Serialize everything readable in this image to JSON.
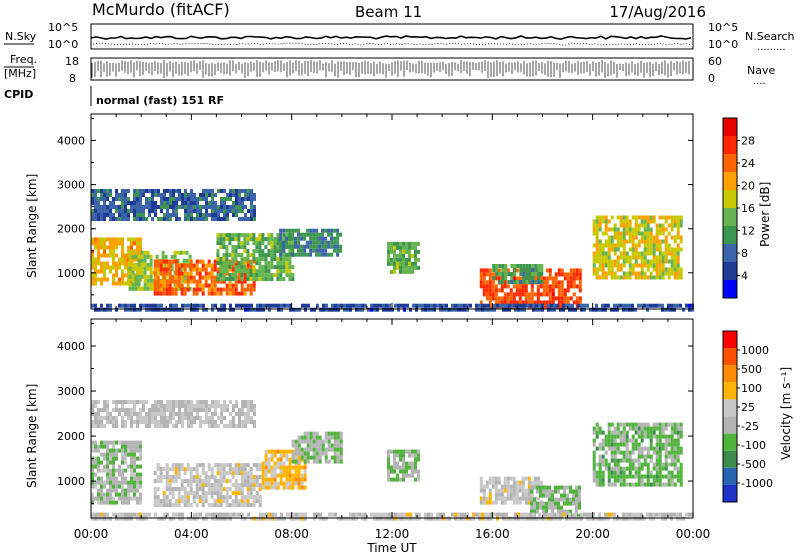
{
  "header": {
    "station": "McMurdo (fitACF)",
    "beam": "Beam 11",
    "date": "17/Aug/2016"
  },
  "top_panel": {
    "nsky_label": "N.Sky",
    "nsearch_label": "N.Search",
    "nsearch_dots": ".........",
    "left_ticks": [
      "10^5",
      "10^0"
    ],
    "right_ticks": [
      "10^5",
      "10^0"
    ],
    "freq_label": "Freq.",
    "freq_unit": "[MHz]",
    "freq_ticks": [
      "18",
      "8"
    ],
    "nave_label": "Nave",
    "nave_dots": "....",
    "nave_ticks": [
      "60",
      "0"
    ],
    "cpid_label": "CPID",
    "cpid_value": "normal (fast) 151 RF"
  },
  "colors": {
    "power_scale": [
      "#0000ff",
      "#1e3c96",
      "#3c64aa",
      "#3c9650",
      "#64b450",
      "#c8c800",
      "#ffa000",
      "#ff6400",
      "#ff2800",
      "#e60000"
    ],
    "velocity_scale": [
      "#1e32c8",
      "#2864b4",
      "#3c8c50",
      "#50b43c",
      "#b4b4b4",
      "#c8c8c8",
      "#ffb400",
      "#ff8c00",
      "#ff5000",
      "#ff0000"
    ]
  },
  "chart_data": [
    {
      "type": "heatmap",
      "title": "",
      "xlabel": "Time UT",
      "ylabel": "Slant Range [km]",
      "x_ticks": [
        "00:00",
        "04:00",
        "08:00",
        "12:00",
        "16:00",
        "20:00",
        "00:00"
      ],
      "y_ticks": [
        "1000",
        "2000",
        "3000",
        "4000"
      ],
      "ylim": [
        180,
        4600
      ],
      "xlim_hours": [
        0,
        24
      ],
      "colorbar": {
        "label": "Power [dB]",
        "ticks": [
          "28",
          "24",
          "20",
          "16",
          "12",
          "8",
          "4"
        ],
        "range": [
          0,
          32
        ]
      },
      "regions": [
        {
          "t0": 0.0,
          "t1": 2.0,
          "r0": 800,
          "r1": 1800,
          "value": 20
        },
        {
          "t0": 1.5,
          "t1": 4.0,
          "r0": 600,
          "r1": 1500,
          "value": 16
        },
        {
          "t0": 2.5,
          "t1": 6.5,
          "r0": 500,
          "r1": 1300,
          "value": 24
        },
        {
          "t0": 5.0,
          "t1": 8.0,
          "r0": 900,
          "r1": 1900,
          "value": 14
        },
        {
          "t0": 7.5,
          "t1": 10.0,
          "r0": 1400,
          "r1": 2000,
          "value": 10
        },
        {
          "t0": 0.0,
          "t1": 6.5,
          "r0": 2200,
          "r1": 2900,
          "value": 8
        },
        {
          "t0": 11.8,
          "t1": 13.0,
          "r0": 1000,
          "r1": 1700,
          "value": 14
        },
        {
          "t0": 15.5,
          "t1": 19.5,
          "r0": 250,
          "r1": 1100,
          "value": 26
        },
        {
          "t0": 16.0,
          "t1": 18.0,
          "r0": 800,
          "r1": 1200,
          "value": 12
        },
        {
          "t0": 20.0,
          "t1": 23.5,
          "r0": 900,
          "r1": 2300,
          "value": 18
        },
        {
          "t0": 0.0,
          "t1": 24.0,
          "r0": 200,
          "r1": 300,
          "value": 6
        }
      ]
    },
    {
      "type": "heatmap",
      "title": "",
      "xlabel": "Time UT",
      "ylabel": "Slant Range [km]",
      "x_ticks": [
        "00:00",
        "04:00",
        "08:00",
        "12:00",
        "16:00",
        "20:00",
        "00:00"
      ],
      "y_ticks": [
        "1000",
        "2000",
        "3000",
        "4000"
      ],
      "ylim": [
        180,
        4600
      ],
      "xlim_hours": [
        0,
        24
      ],
      "colorbar": {
        "label": "Velocity [m s⁻¹]",
        "ticks": [
          "1000",
          "500",
          "100",
          "25",
          "-25",
          "-100",
          "-500",
          "-1000"
        ],
        "range": [
          -1200,
          1200
        ]
      },
      "regions": [
        {
          "t0": 0.0,
          "t1": 2.0,
          "r0": 500,
          "r1": 1900,
          "value": -150
        },
        {
          "t0": 2.5,
          "t1": 6.8,
          "r0": 500,
          "r1": 1400,
          "value": 80
        },
        {
          "t0": 6.8,
          "t1": 8.5,
          "r0": 900,
          "r1": 1700,
          "value": 300
        },
        {
          "t0": 8.0,
          "t1": 10.0,
          "r0": 1400,
          "r1": 2100,
          "value": -200
        },
        {
          "t0": 0.0,
          "t1": 6.5,
          "r0": 2200,
          "r1": 2800,
          "value": 0
        },
        {
          "t0": 11.8,
          "t1": 13.0,
          "r0": 1000,
          "r1": 1700,
          "value": -200
        },
        {
          "t0": 15.5,
          "t1": 18.0,
          "r0": 500,
          "r1": 1100,
          "value": 60
        },
        {
          "t0": 17.5,
          "t1": 19.5,
          "r0": 250,
          "r1": 900,
          "value": -250
        },
        {
          "t0": 20.0,
          "t1": 23.5,
          "r0": 900,
          "r1": 2300,
          "value": -300
        },
        {
          "t0": 0.0,
          "t1": 24.0,
          "r0": 200,
          "r1": 300,
          "value": 50
        }
      ]
    }
  ]
}
